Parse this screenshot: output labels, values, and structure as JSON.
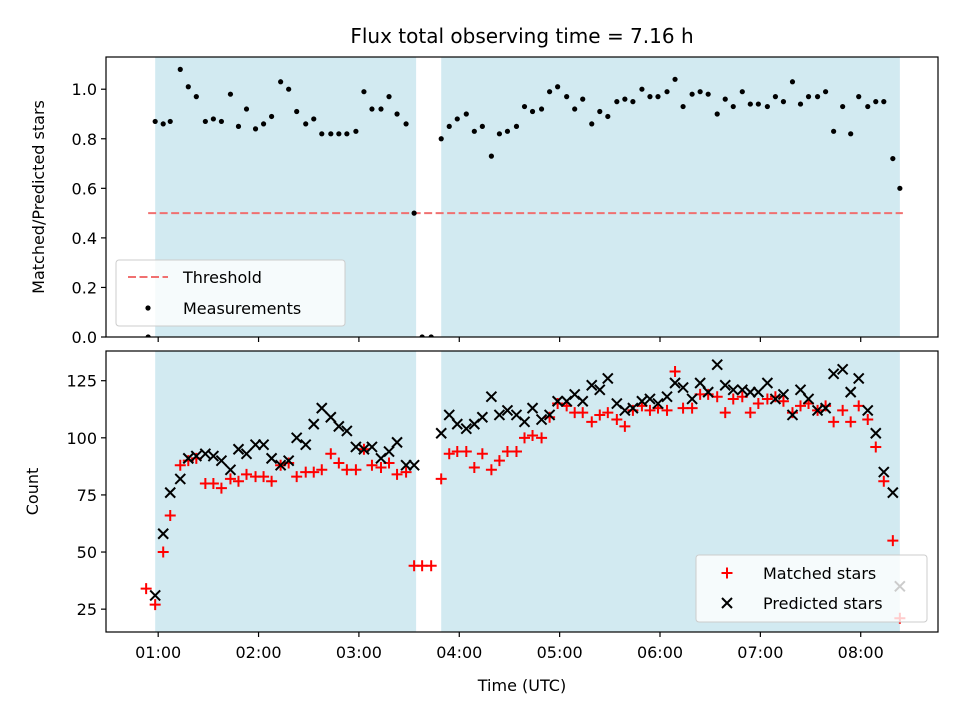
{
  "chart_data": {
    "title": "Flux total observing time = 7.16 h",
    "xlabel": "Time (UTC)",
    "x_unit": "hours UTC",
    "xlim": [
      0.48,
      8.77
    ],
    "xticks": [
      {
        "value": 1,
        "label": "01:00"
      },
      {
        "value": 2,
        "label": "02:00"
      },
      {
        "value": 3,
        "label": "03:00"
      },
      {
        "value": 4,
        "label": "04:00"
      },
      {
        "value": 5,
        "label": "05:00"
      },
      {
        "value": 6,
        "label": "06:00"
      },
      {
        "value": 7,
        "label": "07:00"
      },
      {
        "value": 8,
        "label": "08:00"
      }
    ],
    "shaded_intervals": [
      [
        0.97,
        3.57
      ],
      [
        3.82,
        8.39
      ]
    ],
    "shade_color": "#add8e6",
    "panels": [
      {
        "type": "scatter",
        "ylabel": "Matched/Predicted stars",
        "ylim": [
          0,
          1.13
        ],
        "yticks": [
          0.0,
          0.2,
          0.4,
          0.6,
          0.8,
          1.0
        ],
        "ytick_labels": [
          "0.0",
          "0.2",
          "0.4",
          "0.6",
          "0.8",
          "1.0"
        ],
        "threshold": {
          "name": "Threshold",
          "value": 0.5,
          "x_range": [
            0.9,
            8.42
          ],
          "color": "#f07070"
        },
        "series": [
          {
            "name": "Measurements",
            "color": "#000000",
            "marker": "dot",
            "x": [
              0.9,
              0.97,
              1.05,
              1.12,
              1.22,
              1.3,
              1.38,
              1.47,
              1.55,
              1.63,
              1.72,
              1.8,
              1.88,
              1.97,
              2.05,
              2.13,
              2.22,
              2.3,
              2.38,
              2.47,
              2.55,
              2.63,
              2.72,
              2.8,
              2.88,
              2.97,
              3.05,
              3.13,
              3.22,
              3.3,
              3.38,
              3.47,
              3.55,
              3.63,
              3.72,
              3.82,
              3.9,
              3.98,
              4.07,
              4.15,
              4.23,
              4.32,
              4.4,
              4.48,
              4.57,
              4.65,
              4.73,
              4.82,
              4.9,
              4.98,
              5.07,
              5.15,
              5.23,
              5.32,
              5.4,
              5.48,
              5.57,
              5.65,
              5.73,
              5.82,
              5.9,
              5.98,
              6.07,
              6.15,
              6.23,
              6.32,
              6.4,
              6.48,
              6.57,
              6.65,
              6.73,
              6.82,
              6.9,
              6.98,
              7.07,
              7.15,
              7.23,
              7.32,
              7.4,
              7.48,
              7.57,
              7.65,
              7.73,
              7.82,
              7.9,
              7.98,
              8.07,
              8.15,
              8.23,
              8.32,
              8.39
            ],
            "y": [
              0.0,
              0.87,
              0.86,
              0.87,
              1.08,
              1.01,
              0.97,
              0.87,
              0.88,
              0.87,
              0.98,
              0.85,
              0.92,
              0.84,
              0.86,
              0.89,
              1.03,
              1.0,
              0.91,
              0.86,
              0.88,
              0.82,
              0.82,
              0.82,
              0.82,
              0.83,
              0.99,
              0.92,
              0.92,
              0.97,
              0.9,
              0.86,
              0.5,
              0.0,
              0.0,
              0.8,
              0.85,
              0.88,
              0.9,
              0.83,
              0.85,
              0.73,
              0.82,
              0.83,
              0.85,
              0.93,
              0.91,
              0.92,
              0.99,
              1.01,
              0.97,
              0.92,
              0.96,
              0.86,
              0.91,
              0.89,
              0.95,
              0.96,
              0.95,
              1.0,
              0.97,
              0.97,
              0.99,
              1.04,
              0.93,
              0.98,
              0.99,
              0.98,
              0.9,
              0.96,
              0.93,
              0.99,
              0.94,
              0.94,
              0.93,
              0.97,
              0.95,
              1.03,
              0.94,
              0.97,
              0.97,
              0.99,
              0.83,
              0.93,
              0.82,
              0.97,
              0.93,
              0.95,
              0.95,
              0.72,
              0.6
            ]
          }
        ],
        "legend": {
          "placement": "lower-left",
          "entries": [
            "Threshold",
            "Measurements"
          ]
        }
      },
      {
        "type": "scatter",
        "ylabel": "Count",
        "ylim": [
          15,
          138
        ],
        "yticks": [
          25,
          50,
          75,
          100,
          125
        ],
        "ytick_labels": [
          "25",
          "50",
          "75",
          "100",
          "125"
        ],
        "series": [
          {
            "name": "Matched stars",
            "color": "#ff0000",
            "marker": "plus",
            "x": [
              0.88,
              0.97,
              1.05,
              1.12,
              1.22,
              1.3,
              1.38,
              1.47,
              1.55,
              1.63,
              1.72,
              1.8,
              1.88,
              1.97,
              2.05,
              2.13,
              2.22,
              2.3,
              2.38,
              2.47,
              2.55,
              2.63,
              2.72,
              2.8,
              2.88,
              2.97,
              3.05,
              3.13,
              3.22,
              3.3,
              3.38,
              3.47,
              3.55,
              3.63,
              3.72,
              3.82,
              3.9,
              3.98,
              4.07,
              4.15,
              4.23,
              4.32,
              4.4,
              4.48,
              4.57,
              4.65,
              4.73,
              4.82,
              4.9,
              4.98,
              5.07,
              5.15,
              5.23,
              5.32,
              5.4,
              5.48,
              5.57,
              5.65,
              5.73,
              5.82,
              5.9,
              5.98,
              6.07,
              6.15,
              6.23,
              6.32,
              6.4,
              6.48,
              6.57,
              6.65,
              6.73,
              6.82,
              6.9,
              6.98,
              7.07,
              7.15,
              7.23,
              7.32,
              7.4,
              7.48,
              7.57,
              7.65,
              7.73,
              7.82,
              7.9,
              7.98,
              8.07,
              8.15,
              8.23,
              8.32,
              8.39
            ],
            "y": [
              34,
              27,
              50,
              66,
              88,
              90,
              91,
              80,
              80,
              78,
              82,
              81,
              84,
              83,
              83,
              81,
              88,
              89,
              83,
              85,
              85,
              86,
              93,
              89,
              86,
              86,
              95,
              88,
              87,
              89,
              84,
              85,
              44,
              44,
              44,
              82,
              93,
              94,
              94,
              87,
              93,
              86,
              90,
              94,
              94,
              100,
              101,
              100,
              109,
              115,
              114,
              111,
              111,
              107,
              110,
              111,
              108,
              105,
              112,
              114,
              112,
              113,
              112,
              129,
              113,
              113,
              119,
              119,
              118,
              111,
              117,
              118,
              111,
              115,
              117,
              118,
              116,
              111,
              114,
              115,
              112,
              114,
              107,
              112,
              107,
              114,
              108,
              96,
              81,
              55,
              21
            ]
          },
          {
            "name": "Predicted stars",
            "color": "#000000",
            "marker": "x",
            "x": [
              0.97,
              1.05,
              1.12,
              1.22,
              1.3,
              1.38,
              1.47,
              1.55,
              1.63,
              1.72,
              1.8,
              1.88,
              1.97,
              2.05,
              2.13,
              2.22,
              2.3,
              2.38,
              2.47,
              2.55,
              2.63,
              2.72,
              2.8,
              2.88,
              2.97,
              3.05,
              3.13,
              3.22,
              3.3,
              3.38,
              3.47,
              3.55,
              3.82,
              3.9,
              3.98,
              4.07,
              4.15,
              4.23,
              4.32,
              4.4,
              4.48,
              4.57,
              4.65,
              4.73,
              4.82,
              4.9,
              4.98,
              5.07,
              5.15,
              5.23,
              5.32,
              5.4,
              5.48,
              5.57,
              5.65,
              5.73,
              5.82,
              5.9,
              5.98,
              6.07,
              6.15,
              6.23,
              6.32,
              6.4,
              6.48,
              6.57,
              6.65,
              6.73,
              6.82,
              6.9,
              6.98,
              7.07,
              7.15,
              7.23,
              7.32,
              7.4,
              7.48,
              7.57,
              7.65,
              7.73,
              7.82,
              7.9,
              7.98,
              8.07,
              8.15,
              8.23,
              8.32,
              8.39
            ],
            "y": [
              31,
              58,
              76,
              82,
              91,
              92,
              93,
              92,
              90,
              86,
              95,
              93,
              97,
              97,
              91,
              88,
              90,
              100,
              97,
              106,
              113,
              109,
              105,
              103,
              96,
              95,
              96,
              91,
              94,
              98,
              88,
              88,
              102,
              110,
              106,
              104,
              106,
              109,
              118,
              110,
              112,
              110,
              107,
              113,
              108,
              110,
              116,
              116,
              119,
              116,
              123,
              121,
              126,
              115,
              112,
              113,
              116,
              117,
              115,
              118,
              124,
              122,
              117,
              124,
              120,
              132,
              123,
              121,
              121,
              120,
              120,
              124,
              117,
              119,
              110,
              121,
              117,
              112,
              113,
              128,
              130,
              120,
              126,
              112,
              102,
              85,
              76,
              35
            ]
          }
        ],
        "legend": {
          "placement": "lower-right",
          "entries": [
            "Matched stars",
            "Predicted stars"
          ]
        }
      }
    ]
  }
}
